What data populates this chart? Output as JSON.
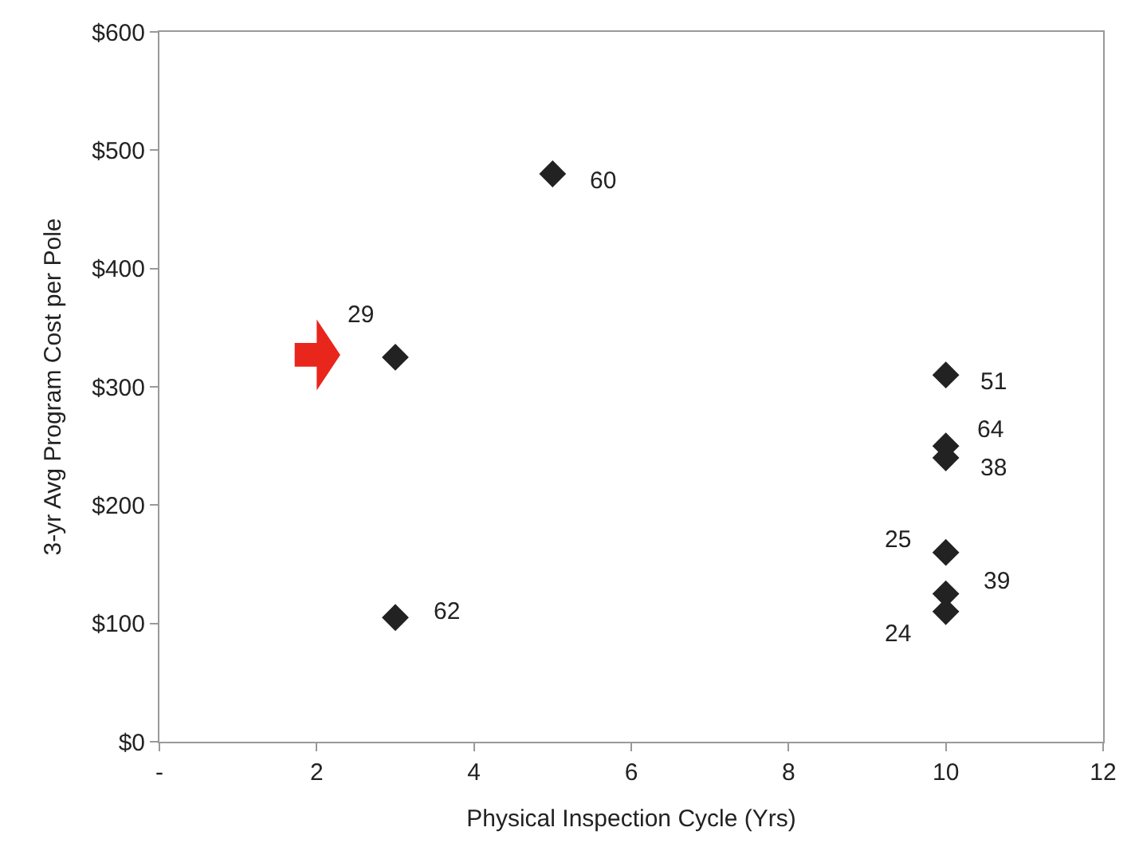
{
  "chart_data": {
    "type": "scatter",
    "xlabel": "Physical Inspection Cycle (Yrs)",
    "ylabel": "3-yr Avg Program Cost per Pole",
    "x": [
      5,
      3,
      3,
      10,
      10,
      10,
      10,
      10,
      10
    ],
    "series": [
      {
        "color": "#222222",
        "values": [
          480,
          325,
          105,
          310,
          250,
          240,
          160,
          125,
          110
        ]
      }
    ],
    "marker": "diamond",
    "xlim": [
      0,
      12
    ],
    "xticks": [
      {
        "value": 0,
        "label": "-"
      },
      2,
      4,
      6,
      8,
      10,
      12
    ],
    "ylim": [
      0,
      600
    ],
    "yticks": [
      {
        "value": 0,
        "label": "$0"
      },
      {
        "value": 100,
        "label": "$100"
      },
      {
        "value": 200,
        "label": "$200"
      },
      {
        "value": 300,
        "label": "$300"
      },
      {
        "value": 400,
        "label": "$400"
      },
      {
        "value": 500,
        "label": "$500"
      },
      {
        "value": 600,
        "label": "$600"
      }
    ],
    "annotations": [
      {
        "text": "60",
        "x": 5,
        "y": 480
      },
      {
        "text": "29",
        "x": 3,
        "y": 325
      },
      {
        "text": "62",
        "x": 3,
        "y": 105
      },
      {
        "text": "51",
        "x": 10,
        "y": 310
      },
      {
        "text": "64",
        "x": 10,
        "y": 250
      },
      {
        "text": "38",
        "x": 10,
        "y": 240
      },
      {
        "text": "25",
        "x": 10,
        "y": 160
      },
      {
        "text": "39",
        "x": 10,
        "y": 125
      },
      {
        "text": "24",
        "x": 10,
        "y": 110
      }
    ]
  }
}
